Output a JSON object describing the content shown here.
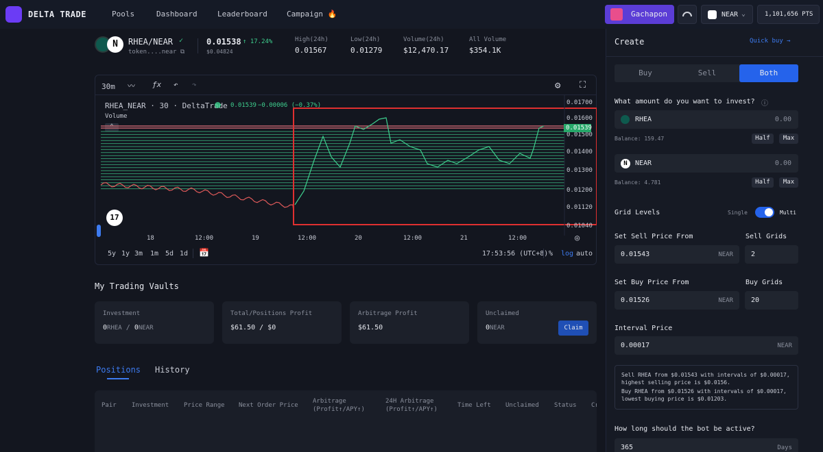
{
  "app": {
    "brand": "DELTA TRADE"
  },
  "nav": {
    "items": [
      {
        "label": "Pools"
      },
      {
        "label": "Dashboard"
      },
      {
        "label": "Leaderboard"
      },
      {
        "label": "Campaign 🔥"
      }
    ]
  },
  "header": {
    "gachapon": "Gachapon",
    "network": "NEAR",
    "points": "1,101,656 PTS"
  },
  "pair": {
    "name": "RHEA/NEAR",
    "token": "token....near",
    "price": "0.01538",
    "change": "↑ 17.24%",
    "price_usd": "$0.04824",
    "stats": [
      {
        "label": "High(24h)",
        "value": "0.01567"
      },
      {
        "label": "Low(24h)",
        "value": "0.01279"
      },
      {
        "label": "Volume(24h)",
        "value": "$12,470.17"
      },
      {
        "label": "All Volume",
        "value": "$354.1K"
      }
    ]
  },
  "chart": {
    "interval": "30m",
    "legend": "RHEA_NEAR · 30 · DeltaTrade",
    "legend_price": "0.01539",
    "legend_change": "−0.00006 (−0.37%)",
    "volume_label": "Volume",
    "last_price_tag": "0.01539",
    "y_ticks": [
      "0.01700",
      "0.01600",
      "0.01500",
      "0.01400",
      "0.01300",
      "0.01200",
      "0.01120",
      "0.01040"
    ],
    "x_ticks": [
      "18",
      "12:00",
      "19",
      "12:00",
      "20",
      "12:00",
      "21",
      "12:00"
    ],
    "ranges": [
      "5y",
      "1y",
      "3m",
      "1m",
      "5d",
      "1d"
    ],
    "time": "17:53:56 (UTC+8)",
    "opt_pct": "%",
    "opt_log": "log",
    "opt_auto": "auto"
  },
  "vaults": {
    "title": "My Trading Vaults",
    "cards": [
      {
        "label": "Investment",
        "v1": "0",
        "u1": "RHEA",
        "sep": "/",
        "v2": "0",
        "u2": "NEAR"
      },
      {
        "label": "Total/Positions Profit",
        "value": "$61.50 / $0"
      },
      {
        "label": "Arbitrage Profit",
        "value": "$61.50"
      },
      {
        "label": "Unclaimed",
        "v1": "0",
        "u1": "NEAR",
        "claim": "Claim"
      }
    ]
  },
  "positions": {
    "tabs": [
      "Positions",
      "History"
    ],
    "columns": [
      "Pair",
      "Investment",
      "Price Range",
      "Next Order Price",
      "Arbitrage\n(Profit↑/APY↑)",
      "24H Arbitrage\n(Profit↑/APY↑)",
      "Time Left",
      "Unclaimed",
      "Status",
      "Cr"
    ]
  },
  "create": {
    "title": "Create",
    "quick_buy": "Quick buy →",
    "tabs": [
      "Buy",
      "Sell",
      "Both"
    ],
    "invest_q": "What amount do you want to invest?",
    "rhea_label": "RHEA",
    "rhea_value": "0.00",
    "rhea_balance": "Balance: 159.47",
    "near_label": "NEAR",
    "near_value": "0.00",
    "near_balance": "Balance: 4.781",
    "half": "Half",
    "max": "Max",
    "grid_levels": "Grid Levels",
    "single": "Single",
    "multi": "Multi",
    "sell_from_label": "Set Sell Price From",
    "sell_grids_label": "Sell Grids",
    "sell_from": "0.01543",
    "sell_grids": "2",
    "buy_from_label": "Set Buy Price From",
    "buy_grids_label": "Buy Grids",
    "buy_from": "0.01526",
    "buy_grids": "20",
    "unit_near": "NEAR",
    "interval_label": "Interval Price",
    "interval": "0.00017",
    "summary1": "Sell RHEA from $0.01543 with intervals of $0.00017, highest selling price is $0.0156.",
    "summary2": "Buy RHEA from $0.01526 with intervals of $0.00017, lowest buying price is $0.01203.",
    "duration_q": "How long should the bot be active?",
    "duration": "365",
    "duration_unit": "Days"
  }
}
